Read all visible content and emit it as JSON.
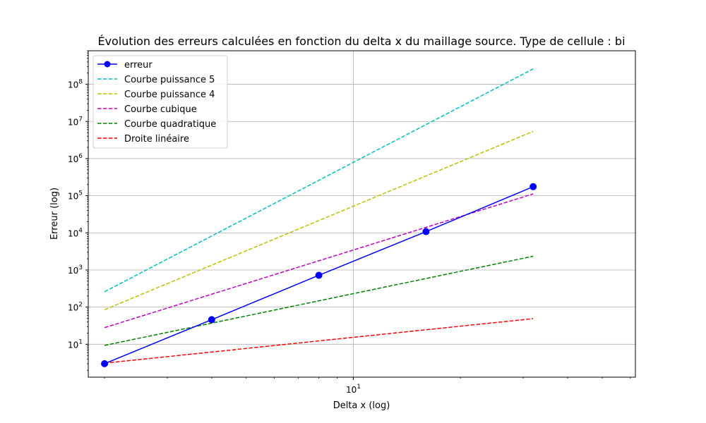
{
  "chart_data": {
    "type": "line",
    "title": "Évolution des erreurs calculées en fonction du delta x du maillage source. Type de cellule : bi",
    "xlabel": "Delta x (log)",
    "ylabel": "Erreur (log)",
    "xscale": "log",
    "yscale": "log",
    "xlim": [
      1.8,
      62
    ],
    "ylim": [
      1.3,
      800000000
    ],
    "grid": true,
    "legend_position": "top-left",
    "x_major_ticks": [
      {
        "value": 10,
        "base": "10",
        "exp": "1"
      }
    ],
    "y_major_ticks": [
      {
        "value": 10,
        "base": "10",
        "exp": "1"
      },
      {
        "value": 100,
        "base": "10",
        "exp": "2"
      },
      {
        "value": 1000,
        "base": "10",
        "exp": "3"
      },
      {
        "value": 10000,
        "base": "10",
        "exp": "4"
      },
      {
        "value": 100000,
        "base": "10",
        "exp": "5"
      },
      {
        "value": 1000000,
        "base": "10",
        "exp": "6"
      },
      {
        "value": 10000000,
        "base": "10",
        "exp": "7"
      },
      {
        "value": 100000000,
        "base": "10",
        "exp": "8"
      }
    ],
    "series": [
      {
        "name": "erreur",
        "color": "#0000ff",
        "style": "solid",
        "marker": true,
        "x": [
          2.0,
          4.0,
          8.0,
          16.0,
          32.0
        ],
        "y": [
          3.0,
          46.0,
          720.0,
          10800.0,
          175000.0
        ]
      },
      {
        "name": "Courbe puissance 5",
        "color": "#00bfbf",
        "style": "dashed",
        "marker": false,
        "x": [
          2.0,
          32.0
        ],
        "y": [
          260.0,
          260000000.0
        ]
      },
      {
        "name": "Courbe puissance 4",
        "color": "#bfbf00",
        "style": "dashed",
        "marker": false,
        "x": [
          2.0,
          32.0
        ],
        "y": [
          85.0,
          5400000.0
        ]
      },
      {
        "name": "Courbe cubique",
        "color": "#bf00bf",
        "style": "dashed",
        "marker": false,
        "x": [
          2.0,
          32.0
        ],
        "y": [
          28.0,
          112000.0
        ]
      },
      {
        "name": "Courbe quadratique",
        "color": "#008000",
        "style": "dashed",
        "marker": false,
        "x": [
          2.0,
          32.0
        ],
        "y": [
          9.3,
          2350.0
        ]
      },
      {
        "name": "Droite linéaire",
        "color": "#ff0000",
        "style": "dashed",
        "marker": false,
        "x": [
          2.0,
          32.0
        ],
        "y": [
          3.1,
          49.0
        ]
      }
    ]
  }
}
